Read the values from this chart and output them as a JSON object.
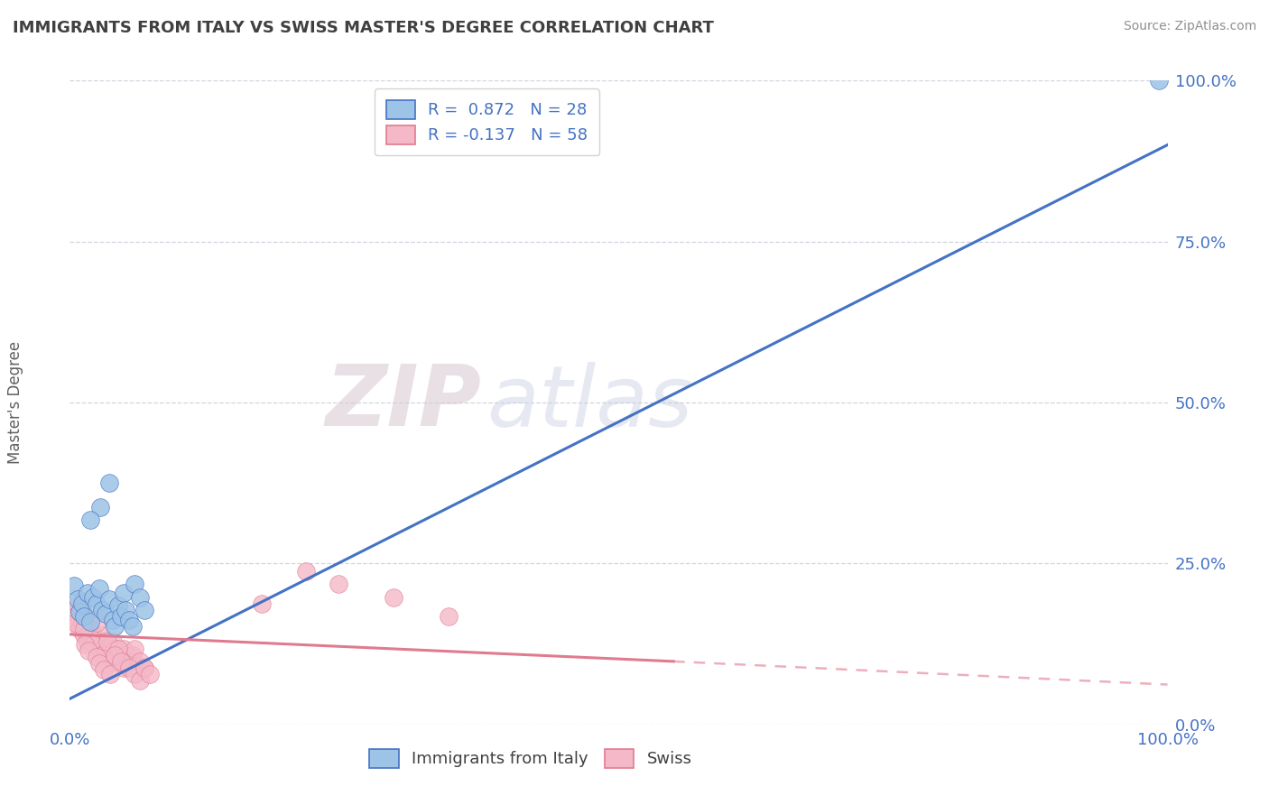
{
  "title": "IMMIGRANTS FROM ITALY VS SWISS MASTER'S DEGREE CORRELATION CHART",
  "source_text": "Source: ZipAtlas.com",
  "ylabel": "Master's Degree",
  "xlim": [
    0.0,
    1.0
  ],
  "ylim": [
    0.0,
    1.0
  ],
  "ytick_vals": [
    0.0,
    0.25,
    0.5,
    0.75,
    1.0
  ],
  "ytick_labels": [
    "0.0%",
    "25.0%",
    "50.0%",
    "75.0%",
    "100.0%"
  ],
  "blue_scatter": [
    [
      0.004,
      0.215
    ],
    [
      0.007,
      0.195
    ],
    [
      0.009,
      0.175
    ],
    [
      0.011,
      0.188
    ],
    [
      0.013,
      0.168
    ],
    [
      0.016,
      0.205
    ],
    [
      0.019,
      0.16
    ],
    [
      0.021,
      0.198
    ],
    [
      0.024,
      0.188
    ],
    [
      0.027,
      0.212
    ],
    [
      0.029,
      0.178
    ],
    [
      0.033,
      0.172
    ],
    [
      0.036,
      0.195
    ],
    [
      0.039,
      0.162
    ],
    [
      0.041,
      0.152
    ],
    [
      0.044,
      0.185
    ],
    [
      0.047,
      0.168
    ],
    [
      0.049,
      0.205
    ],
    [
      0.051,
      0.178
    ],
    [
      0.054,
      0.162
    ],
    [
      0.028,
      0.338
    ],
    [
      0.036,
      0.375
    ],
    [
      0.057,
      0.152
    ],
    [
      0.059,
      0.218
    ],
    [
      0.019,
      0.318
    ],
    [
      0.064,
      0.198
    ],
    [
      0.068,
      0.178
    ],
    [
      0.992,
      1.0
    ]
  ],
  "pink_scatter": [
    [
      0.004,
      0.168
    ],
    [
      0.007,
      0.158
    ],
    [
      0.009,
      0.148
    ],
    [
      0.011,
      0.158
    ],
    [
      0.013,
      0.138
    ],
    [
      0.016,
      0.128
    ],
    [
      0.019,
      0.148
    ],
    [
      0.021,
      0.138
    ],
    [
      0.024,
      0.128
    ],
    [
      0.027,
      0.118
    ],
    [
      0.029,
      0.138
    ],
    [
      0.031,
      0.128
    ],
    [
      0.034,
      0.118
    ],
    [
      0.037,
      0.108
    ],
    [
      0.039,
      0.128
    ],
    [
      0.041,
      0.118
    ],
    [
      0.044,
      0.108
    ],
    [
      0.047,
      0.098
    ],
    [
      0.049,
      0.118
    ],
    [
      0.051,
      0.108
    ],
    [
      0.054,
      0.098
    ],
    [
      0.057,
      0.108
    ],
    [
      0.059,
      0.118
    ],
    [
      0.064,
      0.098
    ],
    [
      0.068,
      0.088
    ],
    [
      0.014,
      0.155
    ],
    [
      0.017,
      0.145
    ],
    [
      0.019,
      0.135
    ],
    [
      0.021,
      0.125
    ],
    [
      0.024,
      0.158
    ],
    [
      0.029,
      0.108
    ],
    [
      0.034,
      0.128
    ],
    [
      0.039,
      0.098
    ],
    [
      0.044,
      0.118
    ],
    [
      0.049,
      0.088
    ],
    [
      0.009,
      0.178
    ],
    [
      0.011,
      0.168
    ],
    [
      0.007,
      0.188
    ],
    [
      0.005,
      0.158
    ],
    [
      0.013,
      0.148
    ],
    [
      0.245,
      0.218
    ],
    [
      0.295,
      0.198
    ],
    [
      0.345,
      0.168
    ],
    [
      0.175,
      0.188
    ],
    [
      0.215,
      0.238
    ],
    [
      0.014,
      0.125
    ],
    [
      0.017,
      0.115
    ],
    [
      0.024,
      0.105
    ],
    [
      0.027,
      0.095
    ],
    [
      0.031,
      0.085
    ],
    [
      0.037,
      0.078
    ],
    [
      0.041,
      0.108
    ],
    [
      0.047,
      0.098
    ],
    [
      0.054,
      0.088
    ],
    [
      0.059,
      0.078
    ],
    [
      0.064,
      0.068
    ],
    [
      0.068,
      0.088
    ],
    [
      0.073,
      0.078
    ]
  ],
  "blue_line": [
    [
      0.0,
      0.04
    ],
    [
      1.0,
      0.9
    ]
  ],
  "pink_line_solid": [
    [
      0.0,
      0.14
    ],
    [
      0.55,
      0.098
    ]
  ],
  "pink_line_dash": [
    [
      0.55,
      0.098
    ],
    [
      1.0,
      0.062
    ]
  ],
  "blue_color": "#4472c4",
  "pink_color": "#e07b8f",
  "blue_scatter_color": "#9dc3e6",
  "pink_scatter_color": "#f4b8c8",
  "grid_color": "#c8c8d8",
  "bg_color": "#ffffff",
  "title_color": "#404040",
  "source_color": "#909090",
  "tick_color": "#4472c4",
  "ylabel_color": "#606060",
  "watermark_zip_color": "#d8c8d0",
  "watermark_atlas_color": "#c8d0e0",
  "legend_label_color": "#4472c4"
}
